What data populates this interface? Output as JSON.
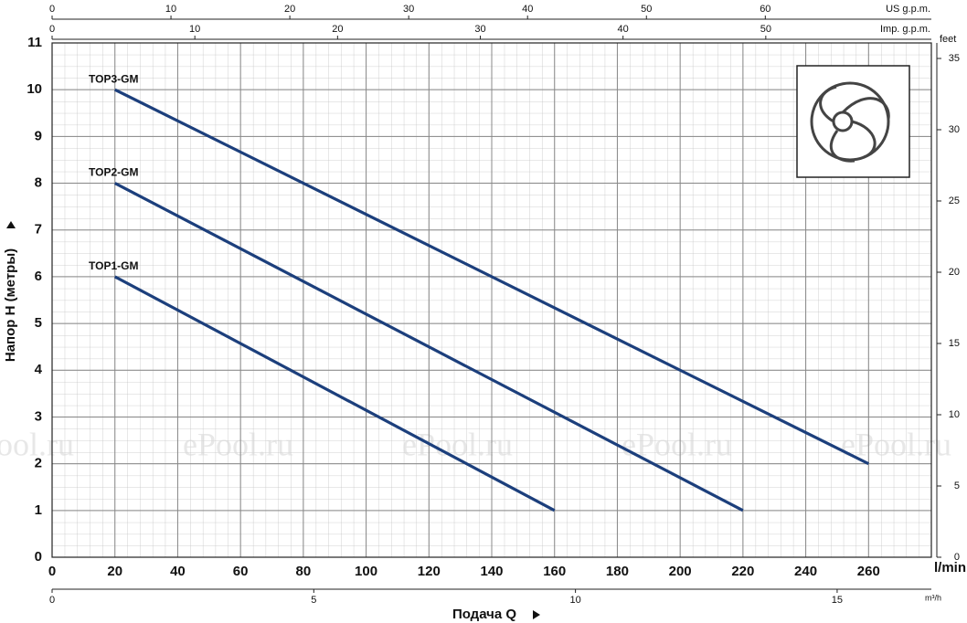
{
  "chart_data": {
    "type": "line",
    "xlabel": "Подача Q",
    "ylabel": "Напор H (метры)",
    "xunit": "l/min",
    "xlim": [
      0,
      280
    ],
    "xticks": [
      0,
      20,
      40,
      60,
      80,
      100,
      120,
      140,
      160,
      180,
      200,
      220,
      240,
      260
    ],
    "ylim": [
      0,
      11
    ],
    "yticks": [
      0,
      1,
      2,
      3,
      4,
      5,
      6,
      7,
      8,
      9,
      10,
      11
    ],
    "grid": true,
    "series": [
      {
        "name": "TOP1-GM",
        "color": "#1c3f7c",
        "x": [
          20,
          160
        ],
        "values": [
          6,
          1
        ]
      },
      {
        "name": "TOP2-GM",
        "color": "#1c3f7c",
        "x": [
          20,
          220
        ],
        "values": [
          8,
          1
        ]
      },
      {
        "name": "TOP3-GM",
        "color": "#1c3f7c",
        "x": [
          20,
          260
        ],
        "values": [
          10,
          2
        ]
      }
    ],
    "top_axes": [
      {
        "label": "US g.p.m.",
        "lim": [
          0,
          73.97
        ],
        "ticks": [
          0,
          10,
          20,
          30,
          40,
          50,
          60
        ]
      },
      {
        "label": "Imp. g.p.m.",
        "lim": [
          0,
          61.6
        ],
        "ticks": [
          0,
          10,
          20,
          30,
          40,
          50
        ]
      }
    ],
    "bottom_axis": {
      "label": "m³/h",
      "lim": [
        0,
        16.8
      ],
      "ticks": [
        0,
        5,
        10,
        15
      ]
    },
    "right_axis": {
      "label": "feet",
      "lim": [
        0,
        36.09
      ],
      "ticks": [
        0,
        5,
        10,
        15,
        20,
        25,
        30,
        35
      ]
    },
    "watermark": "ePool.ru"
  }
}
